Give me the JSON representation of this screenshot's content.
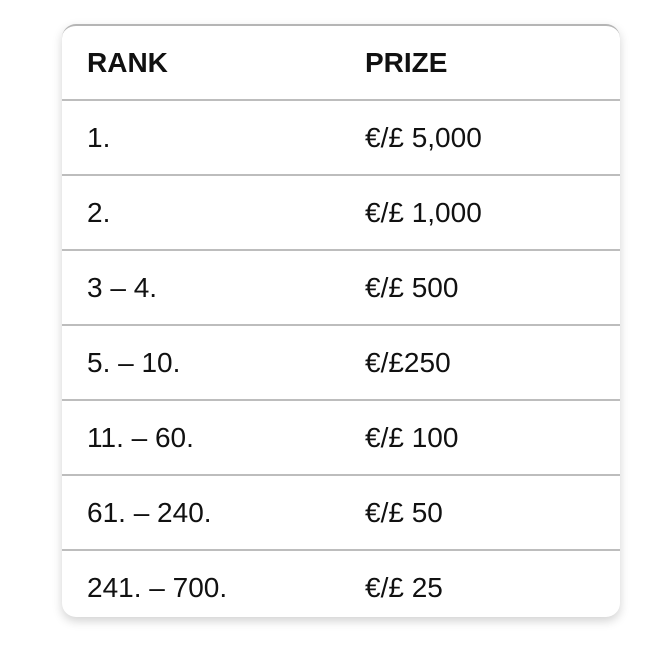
{
  "table": {
    "headers": [
      "RANK",
      "PRIZE"
    ],
    "rows": [
      [
        "1.",
        "€/£ 5,000"
      ],
      [
        "2.",
        "€/£ 1,000"
      ],
      [
        "3 – 4.",
        "€/£ 500"
      ],
      [
        "5. – 10.",
        "€/£250"
      ],
      [
        "11. – 60.",
        "€/£ 100"
      ],
      [
        "61. – 240.",
        "€/£ 50"
      ],
      [
        "241. – 700.",
        "€/£ 25"
      ]
    ]
  }
}
